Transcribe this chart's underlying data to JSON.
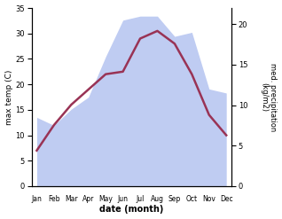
{
  "months": [
    "Jan",
    "Feb",
    "Mar",
    "Apr",
    "May",
    "Jun",
    "Jul",
    "Aug",
    "Sep",
    "Oct",
    "Nov",
    "Dec"
  ],
  "month_indices": [
    0,
    1,
    2,
    3,
    4,
    5,
    6,
    7,
    8,
    9,
    10,
    11
  ],
  "max_temp": [
    7,
    12,
    16,
    19,
    22,
    22.5,
    29,
    30.5,
    28,
    22,
    14,
    10
  ],
  "precipitation": [
    8.5,
    7.5,
    9.5,
    11,
    16,
    20.5,
    21,
    21,
    18.5,
    19,
    12,
    11.5
  ],
  "temp_color": "#993355",
  "precip_color": "#aabbee",
  "temp_ylim": [
    0,
    35
  ],
  "precip_ylim": [
    0,
    22
  ],
  "temp_yticks": [
    0,
    5,
    10,
    15,
    20,
    25,
    30,
    35
  ],
  "precip_yticks": [
    0,
    5,
    10,
    15,
    20
  ],
  "ylabel_left": "max temp (C)",
  "ylabel_right": "med. precipitation\n(kg/m2)",
  "xlabel": "date (month)",
  "line_width": 1.8,
  "background_color": "#ffffff"
}
